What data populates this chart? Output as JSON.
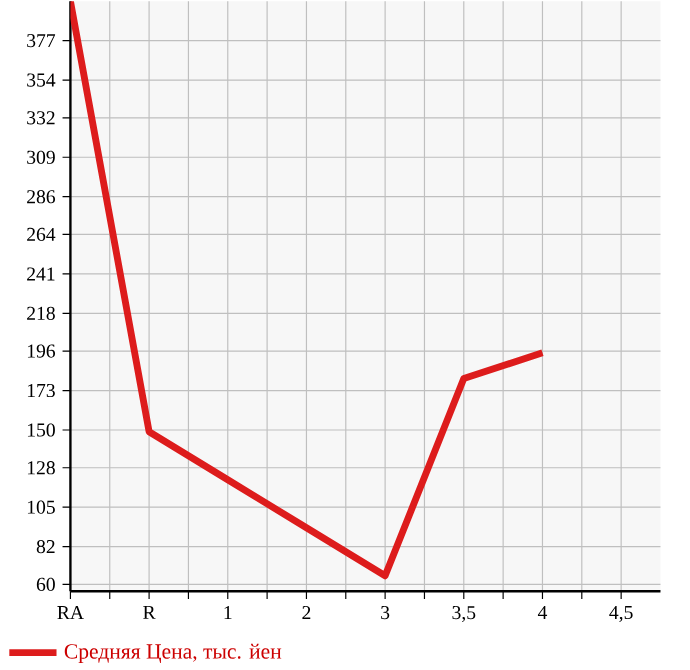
{
  "chart_data": {
    "type": "line",
    "categories": [
      "RA",
      "R",
      "1",
      "2",
      "3",
      "3,5",
      "4",
      "4,5"
    ],
    "series": [
      {
        "name": "Средняя Цена, тыс. йен",
        "color": "#dd1c1c",
        "values": [
          400,
          149,
          121,
          93,
          65,
          180,
          195,
          null
        ]
      }
    ],
    "ylim": [
      56,
      400
    ],
    "yticks": [
      60,
      82,
      105,
      128,
      150,
      173,
      196,
      218,
      241,
      264,
      286,
      309,
      332,
      354,
      377
    ],
    "grid": true,
    "legend": "bottom left",
    "marker": "none",
    "line_style": "solid"
  }
}
